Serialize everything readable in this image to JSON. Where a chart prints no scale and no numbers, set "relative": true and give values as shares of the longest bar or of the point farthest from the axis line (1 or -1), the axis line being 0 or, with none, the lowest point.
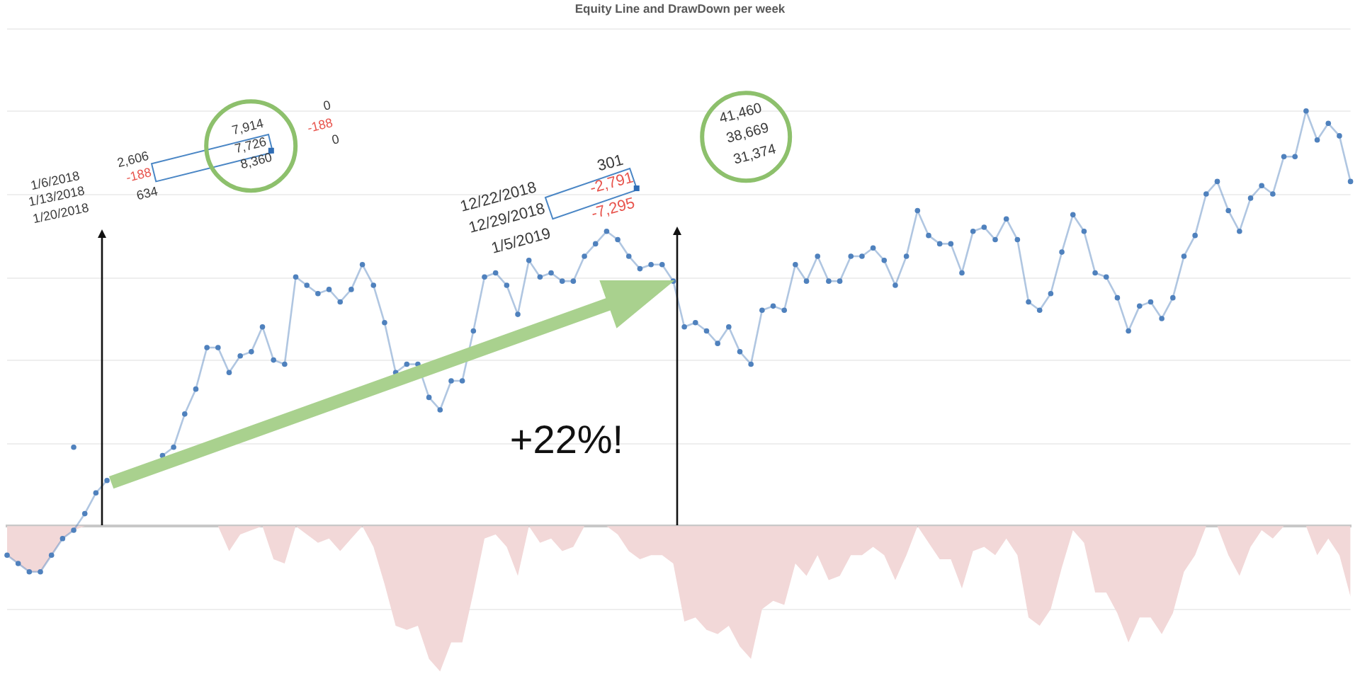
{
  "chart_data": {
    "type": "line",
    "title": "Equity Line and DrawDown per week",
    "relative": true,
    "grid": "y",
    "marker": "circle",
    "categories": [
      null,
      null,
      null,
      null,
      null,
      null,
      null,
      null,
      null,
      null,
      null,
      null,
      null,
      null,
      null,
      null,
      null,
      null,
      null,
      null,
      null,
      null,
      null,
      null,
      null,
      null,
      null,
      null,
      null,
      null,
      null,
      null,
      null,
      null,
      null,
      null,
      null,
      null,
      null,
      null,
      null,
      null,
      null,
      null,
      null,
      null,
      null,
      null,
      null,
      null,
      null,
      null,
      null,
      null,
      null,
      null,
      null,
      null,
      null,
      null,
      null,
      null,
      null,
      null,
      null,
      null,
      null,
      null,
      null,
      null,
      null,
      null,
      null,
      null,
      null,
      null,
      null,
      null,
      null,
      null,
      null,
      null,
      null,
      null,
      null,
      null,
      null,
      null,
      null,
      null,
      null,
      null,
      null,
      null,
      null,
      null,
      null,
      null,
      null,
      null,
      null,
      null,
      null,
      null,
      null,
      null,
      null,
      null,
      null,
      null,
      null,
      null,
      null,
      null,
      null,
      null,
      null,
      null,
      null,
      null,
      null,
      null
    ],
    "series": [
      {
        "type": "area",
        "marker": "none",
        "color": "#f2d8d8",
        "values": [
          -0.07,
          -0.09,
          -0.11,
          -0.11,
          -0.07,
          -0.03,
          -0.01,
          0,
          0,
          0,
          0,
          0,
          0,
          0,
          0,
          0,
          0,
          0,
          0,
          0,
          -0.06,
          -0.02,
          -0.01,
          0,
          -0.08,
          -0.09,
          0,
          -0.02,
          -0.04,
          -0.03,
          -0.06,
          -0.03,
          0,
          -0.05,
          -0.14,
          -0.24,
          -0.25,
          -0.24,
          -0.32,
          -0.35,
          -0.28,
          -0.28,
          -0.16,
          -0.03,
          -0.02,
          -0.05,
          -0.12,
          0,
          -0.04,
          -0.03,
          -0.06,
          -0.05,
          0,
          0,
          0,
          -0.02,
          -0.06,
          -0.08,
          -0.07,
          -0.07,
          -0.09,
          -0.23,
          -0.22,
          -0.25,
          -0.26,
          -0.24,
          -0.29,
          -0.32,
          -0.2,
          -0.18,
          -0.19,
          -0.09,
          -0.12,
          -0.07,
          -0.13,
          -0.12,
          -0.07,
          -0.07,
          -0.05,
          -0.07,
          -0.13,
          -0.07,
          0,
          -0.04,
          -0.08,
          -0.08,
          -0.15,
          -0.06,
          -0.05,
          -0.07,
          -0.03,
          -0.07,
          -0.22,
          -0.24,
          -0.2,
          -0.1,
          -0.01,
          -0.04,
          -0.16,
          -0.16,
          -0.21,
          -0.28,
          -0.22,
          -0.22,
          -0.26,
          -0.21,
          -0.11,
          -0.07,
          0,
          0,
          -0.07,
          -0.12,
          -0.05,
          -0.01,
          -0.03,
          0,
          0,
          0,
          -0.07,
          -0.03,
          -0.07,
          -0.17
        ]
      },
      {
        "color": "#4f81bd",
        "values": [
          -0.07,
          -0.09,
          -0.11,
          -0.11,
          -0.07,
          -0.03,
          -0.01,
          0.03,
          0.08,
          0.11,
          null,
          null,
          null,
          null,
          0.17,
          0.19,
          0.27,
          0.33,
          0.43,
          0.43,
          0.37,
          0.41,
          0.42,
          0.48,
          0.4,
          0.39,
          0.6,
          0.58,
          0.56,
          0.57,
          0.54,
          0.57,
          0.63,
          0.58,
          0.49,
          0.37,
          0.39,
          0.39,
          0.31,
          0.28,
          0.35,
          0.35,
          0.47,
          0.6,
          0.61,
          0.58,
          0.51,
          0.64,
          0.6,
          0.61,
          0.59,
          0.59,
          0.65,
          0.68,
          0.71,
          0.69,
          0.65,
          0.62,
          0.63,
          0.63,
          0.59,
          0.48,
          0.49,
          0.47,
          0.44,
          0.48,
          0.42,
          0.39,
          0.52,
          0.53,
          0.52,
          0.63,
          0.59,
          0.65,
          0.59,
          0.59,
          0.65,
          0.65,
          0.67,
          0.64,
          0.58,
          0.65,
          0.76,
          0.7,
          0.68,
          0.68,
          0.61,
          0.71,
          0.72,
          0.69,
          0.74,
          0.69,
          0.54,
          0.52,
          0.56,
          0.66,
          0.75,
          0.71,
          0.61,
          0.6,
          0.55,
          0.47,
          0.53,
          0.54,
          0.5,
          0.55,
          0.65,
          0.7,
          0.8,
          0.83,
          0.76,
          0.71,
          0.79,
          0.82,
          0.8,
          0.89,
          0.89,
          1,
          0.93,
          0.97,
          0.94,
          0.83
        ]
      },
      {
        "color": "#4f81bd",
        "values": [
          null,
          null,
          null,
          null,
          null,
          null,
          0.19,
          null,
          null,
          null,
          null,
          null,
          null,
          null,
          null,
          null,
          null,
          null,
          null,
          null,
          null,
          null,
          null,
          null,
          null,
          null,
          null,
          null,
          null,
          null,
          null,
          null,
          null,
          null,
          null,
          null,
          null,
          null,
          null,
          null,
          null,
          null,
          null,
          null,
          null,
          null,
          null,
          null,
          null,
          null,
          null,
          null,
          null,
          null,
          null,
          null,
          null,
          null,
          null,
          null,
          null,
          null,
          null,
          null,
          null,
          null,
          null,
          null,
          null,
          null,
          null,
          null,
          null,
          null,
          null,
          null,
          null,
          null,
          null,
          null,
          null,
          null,
          null,
          null,
          null,
          null,
          null,
          null,
          null,
          null,
          null,
          null,
          null,
          null,
          null,
          null,
          null,
          null,
          null,
          null,
          null,
          null,
          null,
          null,
          null,
          null,
          null,
          null,
          null,
          null,
          null,
          null,
          null,
          null,
          null,
          null,
          null,
          null,
          null,
          null,
          null,
          null
        ]
      }
    ],
    "annotations": [
      "1/6/2018",
      "1/13/2018",
      "1/20/2018",
      "2,606",
      "-188",
      "634",
      "7,914",
      "7,726",
      "8,360",
      "0",
      "-188",
      "0",
      "12/22/2018",
      "12/29/2018",
      "1/5/2019",
      "301",
      "-2,791",
      "-7,295",
      "41,460",
      "38,669",
      "31,374",
      "+22%!"
    ]
  }
}
